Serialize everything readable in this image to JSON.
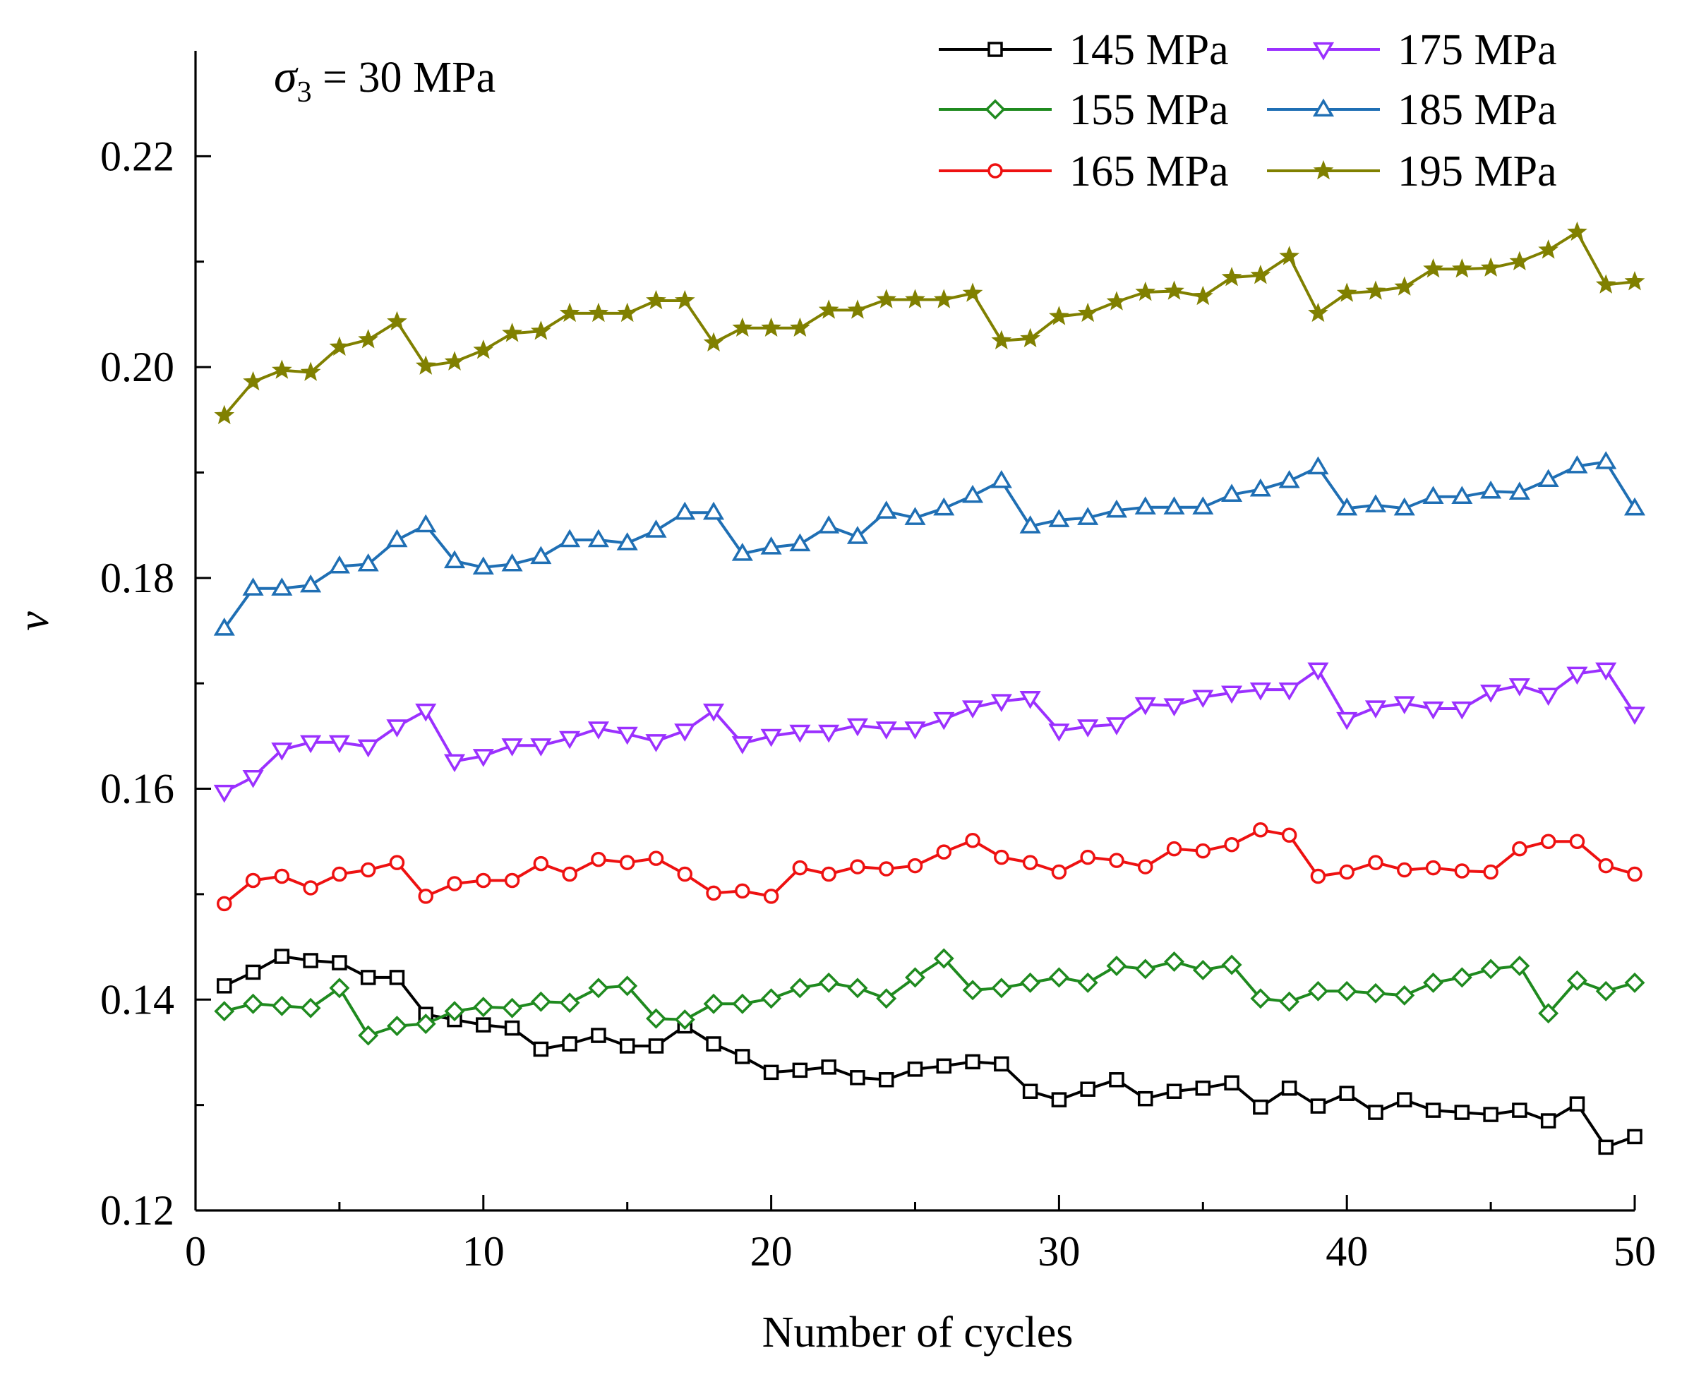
{
  "chart_data": {
    "type": "line",
    "title": "",
    "xlabel": "Number of cycles",
    "ylabel": "ν",
    "xlim": [
      0,
      50
    ],
    "ylim": [
      0.12,
      0.23
    ],
    "x_ticks": [
      0,
      10,
      20,
      30,
      40,
      50
    ],
    "x_tick_labels": [
      "0",
      "10",
      "20",
      "30",
      "40",
      "50"
    ],
    "y_ticks": [
      0.12,
      0.14,
      0.16,
      0.18,
      0.2,
      0.22
    ],
    "y_tick_labels": [
      "0.12",
      "0.14",
      "0.16",
      "0.18",
      "0.20",
      "0.22"
    ],
    "annotation": {
      "symbol": "σ",
      "subscript": "3",
      "text": " = 30 MPa"
    },
    "legend_position": "top-right",
    "x": [
      1,
      2,
      3,
      4,
      5,
      6,
      7,
      8,
      9,
      10,
      11,
      12,
      13,
      14,
      15,
      16,
      17,
      18,
      19,
      20,
      21,
      22,
      23,
      24,
      25,
      26,
      27,
      28,
      29,
      30,
      31,
      32,
      33,
      34,
      35,
      36,
      37,
      38,
      39,
      40,
      41,
      42,
      43,
      44,
      45,
      46,
      47,
      48,
      49,
      50
    ],
    "series": [
      {
        "name": "145 MPa",
        "color": "#000000",
        "marker": "square",
        "values": [
          0.1413,
          0.1426,
          0.1441,
          0.1437,
          0.1435,
          0.1421,
          0.1421,
          0.1386,
          0.1381,
          0.1376,
          0.1373,
          0.1353,
          0.1358,
          0.1366,
          0.1356,
          0.1356,
          0.1375,
          0.1358,
          0.1346,
          0.1331,
          0.1333,
          0.1336,
          0.1326,
          0.1324,
          0.1334,
          0.1337,
          0.1341,
          0.1339,
          0.1313,
          0.1305,
          0.1315,
          0.1324,
          0.1306,
          0.1313,
          0.1316,
          0.1321,
          0.1298,
          0.1316,
          0.1299,
          0.1311,
          0.1293,
          0.1305,
          0.1295,
          0.1293,
          0.1291,
          0.1295,
          0.1285,
          0.1301,
          0.126,
          0.127
        ]
      },
      {
        "name": "155 MPa",
        "color": "#1f8a1f",
        "marker": "diamond",
        "values": [
          0.1389,
          0.1396,
          0.1394,
          0.1392,
          0.1411,
          0.1366,
          0.1375,
          0.1377,
          0.1389,
          0.1393,
          0.1392,
          0.1398,
          0.1397,
          0.1411,
          0.1413,
          0.1382,
          0.1381,
          0.1396,
          0.1396,
          0.1401,
          0.1411,
          0.1416,
          0.1411,
          0.1401,
          0.1421,
          0.1439,
          0.1409,
          0.1411,
          0.1416,
          0.1421,
          0.1416,
          0.1432,
          0.1429,
          0.1436,
          0.1428,
          0.1433,
          0.1401,
          0.1398,
          0.1408,
          0.1408,
          0.1406,
          0.1404,
          0.1416,
          0.1421,
          0.1429,
          0.1432,
          0.1387,
          0.1418,
          0.1408,
          0.1416
        ]
      },
      {
        "name": "165 MPa",
        "color": "#ee1111",
        "marker": "circle",
        "values": [
          0.1491,
          0.1513,
          0.1517,
          0.1506,
          0.1519,
          0.1523,
          0.153,
          0.1498,
          0.151,
          0.1513,
          0.1513,
          0.1529,
          0.1519,
          0.1533,
          0.153,
          0.1534,
          0.1519,
          0.1501,
          0.1503,
          0.1498,
          0.1525,
          0.1519,
          0.1526,
          0.1524,
          0.1527,
          0.154,
          0.1551,
          0.1535,
          0.153,
          0.1521,
          0.1535,
          0.1532,
          0.1526,
          0.1543,
          0.1541,
          0.1547,
          0.1561,
          0.1556,
          0.1517,
          0.1521,
          0.153,
          0.1523,
          0.1525,
          0.1522,
          0.1521,
          0.1543,
          0.155,
          0.155,
          0.1527,
          0.1519
        ]
      },
      {
        "name": "175 MPa",
        "color": "#9b30ff",
        "marker": "triangle-down",
        "values": [
          0.1597,
          0.1611,
          0.1637,
          0.1644,
          0.1644,
          0.164,
          0.1659,
          0.1674,
          0.1626,
          0.1631,
          0.1641,
          0.1641,
          0.1648,
          0.1657,
          0.1652,
          0.1645,
          0.1655,
          0.1674,
          0.1643,
          0.165,
          0.1654,
          0.1654,
          0.166,
          0.1657,
          0.1657,
          0.1666,
          0.1677,
          0.1683,
          0.1686,
          0.1655,
          0.1659,
          0.1661,
          0.168,
          0.1679,
          0.1687,
          0.1691,
          0.1694,
          0.1694,
          0.1713,
          0.1666,
          0.1677,
          0.1681,
          0.1676,
          0.1676,
          0.1692,
          0.1698,
          0.1689,
          0.1709,
          0.1713,
          0.1671
        ]
      },
      {
        "name": "185 MPa",
        "color": "#1f6fb4",
        "marker": "triangle-up",
        "values": [
          0.1752,
          0.179,
          0.179,
          0.1793,
          0.1811,
          0.1813,
          0.1836,
          0.185,
          0.1816,
          0.181,
          0.1813,
          0.182,
          0.1836,
          0.1836,
          0.1833,
          0.1845,
          0.1862,
          0.1862,
          0.1823,
          0.1829,
          0.1832,
          0.1849,
          0.1839,
          0.1863,
          0.1857,
          0.1866,
          0.1878,
          0.1892,
          0.1849,
          0.1855,
          0.1857,
          0.1864,
          0.1867,
          0.1867,
          0.1867,
          0.1879,
          0.1884,
          0.1892,
          0.1905,
          0.1866,
          0.1869,
          0.1866,
          0.1877,
          0.1877,
          0.1882,
          0.1881,
          0.1893,
          0.1906,
          0.191,
          0.1866
        ]
      },
      {
        "name": "195 MPa",
        "color": "#808000",
        "marker": "star",
        "values": [
          0.1954,
          0.1986,
          0.1997,
          0.1995,
          0.2019,
          0.2026,
          0.2043,
          0.2001,
          0.2005,
          0.2016,
          0.2032,
          0.2034,
          0.2051,
          0.2051,
          0.2051,
          0.2063,
          0.2063,
          0.2023,
          0.2037,
          0.2037,
          0.2037,
          0.2054,
          0.2054,
          0.2064,
          0.2064,
          0.2064,
          0.207,
          0.2025,
          0.2027,
          0.2048,
          0.2051,
          0.2062,
          0.2071,
          0.2072,
          0.2067,
          0.2085,
          0.2087,
          0.2105,
          0.2051,
          0.207,
          0.2072,
          0.2076,
          0.2093,
          0.2093,
          0.2094,
          0.21,
          0.2111,
          0.2128,
          0.2078,
          0.2081
        ]
      }
    ]
  }
}
